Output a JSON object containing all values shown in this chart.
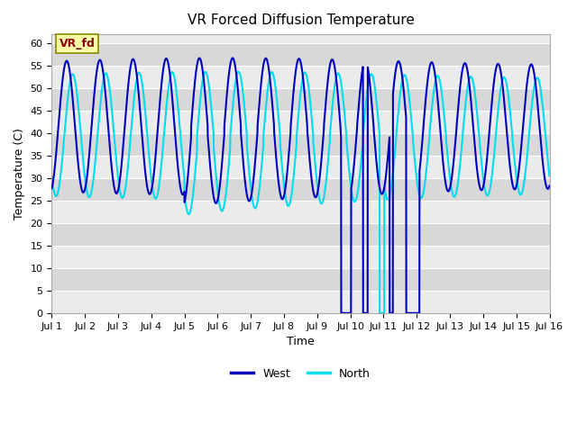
{
  "title": "VR Forced Diffusion Temperature",
  "xlabel": "Time",
  "ylabel": "Temperature (C)",
  "ylim": [
    0,
    62
  ],
  "xlim": [
    0,
    15
  ],
  "bg_color_light": "#ebebeb",
  "bg_color_dark": "#d8d8d8",
  "fig_color": "#ffffff",
  "west_color": "#0000bb",
  "north_color": "#00ddee",
  "annotation_text": "VR_fd",
  "annotation_bg": "#ffffaa",
  "annotation_border": "#8b0000",
  "xtick_labels": [
    "Jul 1",
    "Jul 2",
    "Jul 3",
    "Jul 4",
    "Jul 5",
    "Jul 6",
    "Jul 7",
    "Jul 8",
    "Jul 9",
    "Jul 10",
    "Jul 11",
    "Jul 12",
    "Jul 13",
    "Jul 14",
    "Jul 15",
    "Jul 16"
  ],
  "ytick_values": [
    0,
    5,
    10,
    15,
    20,
    25,
    30,
    35,
    40,
    45,
    50,
    55,
    60
  ],
  "grid_color": "#ffffff",
  "west_lw": 1.5,
  "north_lw": 1.5
}
